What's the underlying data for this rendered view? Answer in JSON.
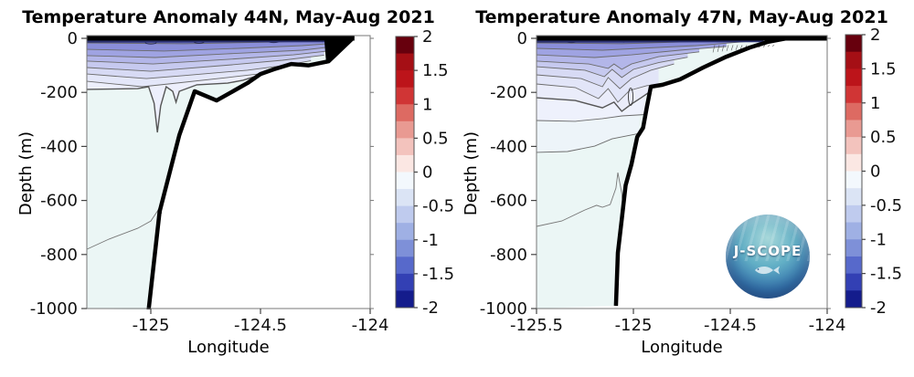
{
  "panels": [
    {
      "title": "Temperature Anomaly 44N, May-Aug 2021",
      "xlabel": "Longitude",
      "ylabel": "Depth (m)"
    },
    {
      "title": "Temperature Anomaly 47N, May-Aug 2021",
      "xlabel": "Longitude",
      "ylabel": "Depth (m)"
    }
  ],
  "logo": {
    "text": "J-SCOPE"
  },
  "colorbar": {
    "vmin": -2,
    "vmax": 2,
    "tick_labels": [
      "2",
      "1.5",
      "1",
      "0.5",
      "0",
      "-0.5",
      "-1",
      "-1.5",
      "-2"
    ],
    "colors": [
      "#67000d",
      "#a50f15",
      "#bc141a",
      "#d03535",
      "#dd6a62",
      "#e99a92",
      "#f3c3bd",
      "#fbe7e3",
      "#f3f8fd",
      "#dbe4f5",
      "#bfcbee",
      "#9fb0e4",
      "#7e90d8",
      "#5769cb",
      "#3340b4",
      "#141c8c"
    ]
  },
  "chart_data": [
    {
      "type": "contour",
      "title": "Temperature Anomaly 44N, May-Aug 2021",
      "xlabel": "Longitude",
      "ylabel": "Depth (m)",
      "xlim": [
        -125.2917,
        -124.0
      ],
      "ylim": [
        -1000,
        0
      ],
      "x_ticks": [
        -125,
        -124.5,
        -124
      ],
      "x_tick_labels": [
        "-125",
        "-124.5",
        "-124"
      ],
      "y_ticks": [
        0,
        -200,
        -400,
        -600,
        -800,
        -1000
      ],
      "y_tick_labels": [
        "0",
        "-200",
        "-400",
        "-600",
        "-800",
        "-1000"
      ],
      "colorbar_ticks": [
        2,
        1.5,
        1,
        0.5,
        0,
        -0.5,
        -1,
        -1.5,
        -2
      ],
      "water_color": "#ebf6f5",
      "seafloor_color": "#ffffff",
      "band_colors": [
        "#666cc4",
        "#8a8ed9",
        "#9fa3e2",
        "#b3b6e9",
        "#c6c9ef",
        "#d7daf4",
        "#e4e7f9",
        "#edeffc"
      ],
      "bathymetry": [
        [
          -124.08,
          0
        ],
        [
          -124.19,
          -85
        ],
        [
          -124.28,
          -100
        ],
        [
          -124.36,
          -95
        ],
        [
          -124.44,
          -115
        ],
        [
          -124.5,
          -132
        ],
        [
          -124.56,
          -166
        ],
        [
          -124.7,
          -230
        ],
        [
          -124.8,
          -196
        ],
        [
          -124.87,
          -358
        ],
        [
          -124.96,
          -642
        ],
        [
          -125.01,
          -1005
        ]
      ],
      "coast_wedge": [
        [
          -124.21,
          4
        ],
        [
          -124.07,
          4
        ],
        [
          -124.2,
          -95
        ]
      ],
      "surface_contours": [
        [
          [
            -125.29,
            -17
          ],
          [
            -124.85,
            -20
          ],
          [
            -124.44,
            -14
          ],
          [
            -124.09,
            -7
          ]
        ],
        [
          [
            -125.29,
            -41
          ],
          [
            -124.94,
            -47
          ],
          [
            -124.6,
            -37
          ],
          [
            -124.31,
            -27
          ],
          [
            -124.11,
            -15
          ]
        ],
        [
          [
            -125.29,
            -64
          ],
          [
            -124.98,
            -71
          ],
          [
            -124.65,
            -57
          ],
          [
            -124.31,
            -44
          ],
          [
            -124.14,
            -28
          ]
        ],
        [
          [
            -125.29,
            -84
          ],
          [
            -124.99,
            -95
          ],
          [
            -124.65,
            -78
          ],
          [
            -124.35,
            -61
          ],
          [
            -124.17,
            -45
          ]
        ],
        [
          [
            -125.29,
            -108
          ],
          [
            -125.0,
            -122
          ],
          [
            -124.63,
            -98
          ],
          [
            -124.4,
            -81
          ],
          [
            -124.21,
            -62
          ]
        ],
        [
          [
            -125.29,
            -132
          ],
          [
            -125.02,
            -149
          ],
          [
            -124.85,
            -138
          ],
          [
            -124.56,
            -118
          ],
          [
            -124.4,
            -101
          ],
          [
            -124.27,
            -83
          ]
        ],
        [
          [
            -125.29,
            -159
          ],
          [
            -125.04,
            -179
          ],
          [
            -124.92,
            -169
          ],
          [
            -124.65,
            -145
          ],
          [
            -124.47,
            -128
          ]
        ],
        [
          [
            -125.29,
            -189
          ],
          [
            -125.06,
            -186
          ],
          [
            -125.01,
            -179
          ],
          [
            -124.985,
            -240
          ],
          [
            -124.97,
            -348
          ],
          [
            -124.955,
            -250
          ],
          [
            -124.93,
            -179
          ],
          [
            -124.9,
            -196
          ],
          [
            -124.885,
            -236
          ],
          [
            -124.87,
            -196
          ],
          [
            -124.79,
            -172
          ],
          [
            -124.65,
            -166
          ],
          [
            -124.58,
            -155
          ],
          [
            -124.52,
            -140
          ]
        ]
      ],
      "heavy_contour_index": 7,
      "deep_contour": [
        [
          -125.29,
          -780
        ],
        [
          -125.19,
          -743
        ],
        [
          -125.06,
          -703
        ],
        [
          -125.0,
          -676
        ],
        [
          -124.97,
          -640
        ],
        [
          -124.96,
          -625
        ],
        [
          -124.95,
          -648
        ]
      ],
      "speckle_loops": [
        [
          -125.0,
          -15
        ],
        [
          -124.78,
          -12
        ],
        [
          -124.44,
          -10
        ]
      ],
      "hatch_zone": null
    },
    {
      "type": "contour",
      "title": "Temperature Anomaly 47N, May-Aug 2021",
      "xlabel": "Longitude",
      "ylabel": "Depth (m)",
      "xlim": [
        -125.5,
        -124.0
      ],
      "ylim": [
        -1000,
        0
      ],
      "x_ticks": [
        -125.5,
        -125,
        -124.5,
        -124
      ],
      "x_tick_labels": [
        "-125.5",
        "-125",
        "-124.5",
        "-124"
      ],
      "y_ticks": [
        0,
        -200,
        -400,
        -600,
        -800,
        -1000
      ],
      "y_tick_labels": [
        "0",
        "-200",
        "-400",
        "-600",
        "-800",
        "-1000"
      ],
      "colorbar_ticks": [
        2,
        1.5,
        1,
        0.5,
        0,
        -0.5,
        -1,
        -1.5,
        -2
      ],
      "water_color": "#ebf6f5",
      "seafloor_color": "#ffffff",
      "band_colors": [
        "#666cc4",
        "#8a8ed9",
        "#9fa3e2",
        "#b3b6e9",
        "#c6c9ef",
        "#d7daf4",
        "#e2e5f8",
        "#eaecfa",
        "#eef1fc",
        "#edf4f9"
      ],
      "bathymetry": [
        [
          -124.21,
          0
        ],
        [
          -124.31,
          -14
        ],
        [
          -124.4,
          -34
        ],
        [
          -124.52,
          -68
        ],
        [
          -124.64,
          -108
        ],
        [
          -124.76,
          -152
        ],
        [
          -124.85,
          -172
        ],
        [
          -124.91,
          -179
        ],
        [
          -124.93,
          -253
        ],
        [
          -124.95,
          -331
        ],
        [
          -124.98,
          -365
        ],
        [
          -125.01,
          -466
        ],
        [
          -125.04,
          -544
        ],
        [
          -125.06,
          -669
        ],
        [
          -125.08,
          -794
        ],
        [
          -125.09,
          -990
        ]
      ],
      "coast_wedge": null,
      "surface_contours": [
        [
          [
            -125.5,
            -17
          ],
          [
            -125.06,
            -20
          ],
          [
            -124.68,
            -12
          ],
          [
            -124.27,
            -3
          ]
        ],
        [
          [
            -125.5,
            -37
          ],
          [
            -125.16,
            -44
          ],
          [
            -124.97,
            -37
          ],
          [
            -124.68,
            -27
          ],
          [
            -124.42,
            -12
          ]
        ],
        [
          [
            -125.5,
            -61
          ],
          [
            -125.2,
            -71
          ],
          [
            -125.01,
            -61
          ],
          [
            -124.76,
            -44
          ],
          [
            -124.52,
            -30
          ]
        ],
        [
          [
            -125.5,
            -84
          ],
          [
            -125.23,
            -95
          ],
          [
            -125.13,
            -111
          ],
          [
            -125.1,
            -95
          ],
          [
            -125.06,
            -115
          ],
          [
            -125.01,
            -95
          ],
          [
            -124.87,
            -68
          ],
          [
            -124.66,
            -50
          ]
        ],
        [
          [
            -125.5,
            -105
          ],
          [
            -125.25,
            -118
          ],
          [
            -125.15,
            -142
          ],
          [
            -125.11,
            -115
          ],
          [
            -125.06,
            -145
          ],
          [
            -125.0,
            -115
          ],
          [
            -124.87,
            -90
          ],
          [
            -124.72,
            -70
          ]
        ],
        [
          [
            -125.5,
            -135
          ],
          [
            -125.27,
            -149
          ],
          [
            -125.16,
            -179
          ],
          [
            -125.13,
            -145
          ],
          [
            -125.07,
            -186
          ],
          [
            -125.01,
            -149
          ],
          [
            -124.91,
            -118
          ],
          [
            -124.79,
            -95
          ]
        ],
        [
          [
            -125.5,
            -169
          ],
          [
            -125.3,
            -182
          ],
          [
            -125.18,
            -223
          ],
          [
            -125.13,
            -186
          ],
          [
            -125.08,
            -236
          ],
          [
            -125.02,
            -193
          ],
          [
            -124.93,
            -175
          ],
          [
            -124.87,
            -172
          ]
        ],
        [
          [
            -125.5,
            -220
          ],
          [
            -125.3,
            -230
          ],
          [
            -125.16,
            -257
          ],
          [
            -125.1,
            -236
          ],
          [
            -125.06,
            -270
          ],
          [
            -125.01,
            -243
          ],
          [
            -124.96,
            -220
          ],
          [
            -124.92,
            -200
          ]
        ],
        [
          [
            -125.5,
            -304
          ],
          [
            -125.3,
            -307
          ],
          [
            -125.16,
            -297
          ],
          [
            -125.06,
            -287
          ],
          [
            -124.94,
            -282
          ]
        ],
        [
          [
            -125.5,
            -422
          ],
          [
            -125.34,
            -419
          ],
          [
            -125.2,
            -399
          ],
          [
            -125.11,
            -372
          ],
          [
            -124.97,
            -352
          ]
        ]
      ],
      "heavy_contour_index": 7,
      "deep_contour": [
        [
          -125.5,
          -696
        ],
        [
          -125.37,
          -676
        ],
        [
          -125.25,
          -635
        ],
        [
          -125.19,
          -618
        ],
        [
          -125.16,
          -625
        ],
        [
          -125.12,
          -615
        ],
        [
          -125.09,
          -554
        ],
        [
          -125.08,
          -497
        ],
        [
          -125.06,
          -574
        ],
        [
          -125.05,
          -660
        ]
      ],
      "mini_loop": {
        "lon": -125.014,
        "depth": -216,
        "rlon": 0.012,
        "rdepth": 32
      },
      "speckle_loops": [
        [
          -125.32,
          -10
        ],
        [
          -125.05,
          -8
        ],
        [
          -124.75,
          -6
        ]
      ],
      "hatch_zone": {
        "lon_range": [
          -124.58,
          -124.26
        ],
        "depth_range": [
          -18,
          -52
        ]
      }
    }
  ]
}
